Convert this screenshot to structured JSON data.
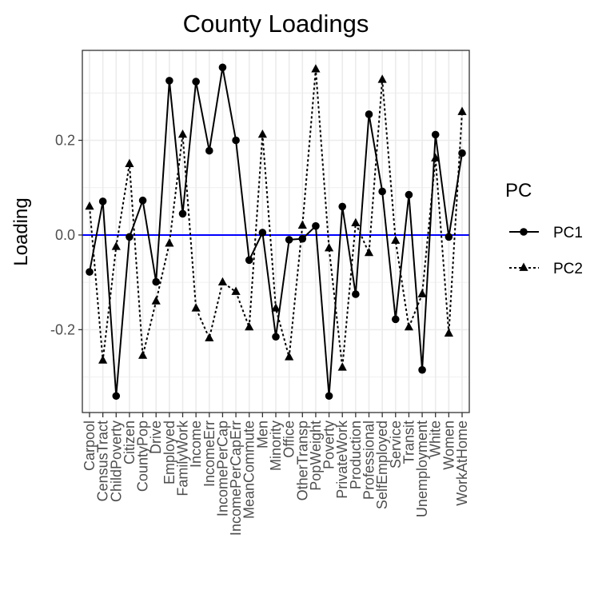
{
  "chart_data": {
    "type": "line",
    "title": "County Loadings",
    "xlabel": "",
    "ylabel": "Loading",
    "ylim": [
      -0.375,
      0.39
    ],
    "yticks": [
      -0.2,
      0.0,
      0.2
    ],
    "ytick_labels": [
      "-0.2",
      "0.0",
      "0.2"
    ],
    "grid": true,
    "reference_line": {
      "y": 0,
      "color": "#0000ff"
    },
    "legend": {
      "title": "PC",
      "placement": "right"
    },
    "categories": [
      "Carpool",
      "CensusTract",
      "ChildPoverty",
      "Citizen",
      "CountyPop",
      "Drive",
      "Employed",
      "FamilyWork",
      "Income",
      "IncomeErr",
      "IncomePerCap",
      "IncomePerCapErr",
      "MeanCommute",
      "Men",
      "Minority",
      "Office",
      "OtherTransp",
      "PopWeight",
      "Poverty",
      "PrivateWork",
      "Production",
      "Professional",
      "SelfEmployed",
      "Service",
      "Transit",
      "Unemployment",
      "White",
      "Women",
      "WorkAtHome"
    ],
    "series": [
      {
        "name": "PC1",
        "line_style": "solid",
        "marker": "circle",
        "values": [
          -0.078,
          0.071,
          -0.34,
          -0.004,
          0.073,
          -0.099,
          0.326,
          0.045,
          0.324,
          0.178,
          0.354,
          0.2,
          -0.053,
          0.005,
          -0.215,
          -0.01,
          -0.008,
          0.019,
          -0.34,
          0.06,
          -0.125,
          0.255,
          0.092,
          -0.178,
          0.085,
          -0.285,
          0.212,
          -0.004,
          0.173
        ]
      },
      {
        "name": "PC2",
        "line_style": "dotted",
        "marker": "triangle",
        "values": [
          0.06,
          -0.265,
          -0.025,
          0.15,
          -0.255,
          -0.14,
          -0.018,
          0.212,
          -0.155,
          -0.218,
          -0.1,
          -0.12,
          -0.195,
          0.212,
          -0.155,
          -0.258,
          0.02,
          0.35,
          -0.028,
          -0.28,
          0.025,
          -0.038,
          0.328,
          -0.012,
          -0.195,
          -0.125,
          0.162,
          -0.208,
          0.26
        ]
      }
    ]
  }
}
